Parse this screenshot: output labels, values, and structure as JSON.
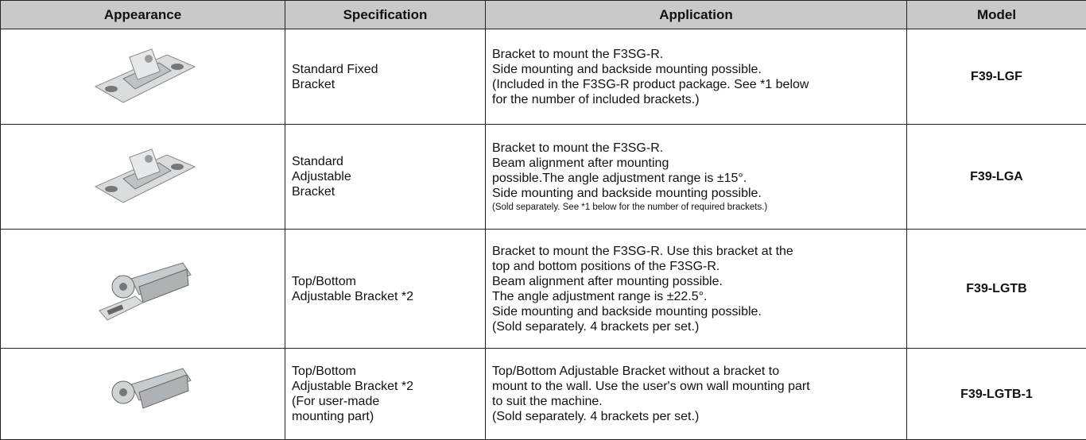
{
  "table": {
    "header": [
      "Appearance",
      "Specification",
      "Application",
      "Model"
    ],
    "rows": [
      {
        "specification": [
          "Standard Fixed",
          "Bracket"
        ],
        "application": [
          "Bracket to mount the F3SG-R.",
          "Side mounting and backside mounting possible.",
          "(Included in the F3SG-R product package. See *1 below",
          "for the number of included brackets.)"
        ],
        "model": "F39-LGF"
      },
      {
        "specification": [
          "Standard",
          "Adjustable",
          "Bracket"
        ],
        "application": [
          "Bracket to mount the F3SG-R.",
          "Beam alignment after mounting",
          "possible.The angle adjustment range is ±15°.",
          "Side mounting and backside mounting possible.",
          "(Sold separately. See *1 below for the number of required brackets.)"
        ],
        "model": "F39-LGA"
      },
      {
        "specification": [
          "Top/Bottom",
          "Adjustable Bracket *2"
        ],
        "application": [
          "Bracket to mount the F3SG-R. Use this bracket at the",
          "top and bottom positions of the F3SG-R.",
          "Beam alignment after mounting possible.",
          "The angle adjustment range is ±22.5°.",
          "Side mounting and backside mounting possible.",
          "(Sold separately. 4 brackets per set.)"
        ],
        "model": "F39-LGTB"
      },
      {
        "specification": [
          "Top/Bottom",
          "Adjustable Bracket *2",
          "(For user-made",
          "mounting part)"
        ],
        "application": [
          "Top/Bottom Adjustable Bracket without a bracket to",
          "mount to the wall. Use the user's own wall mounting part",
          "to suit the machine.",
          " (Sold separately. 4 brackets per set.)"
        ],
        "model": "F39-LGTB-1"
      }
    ]
  }
}
